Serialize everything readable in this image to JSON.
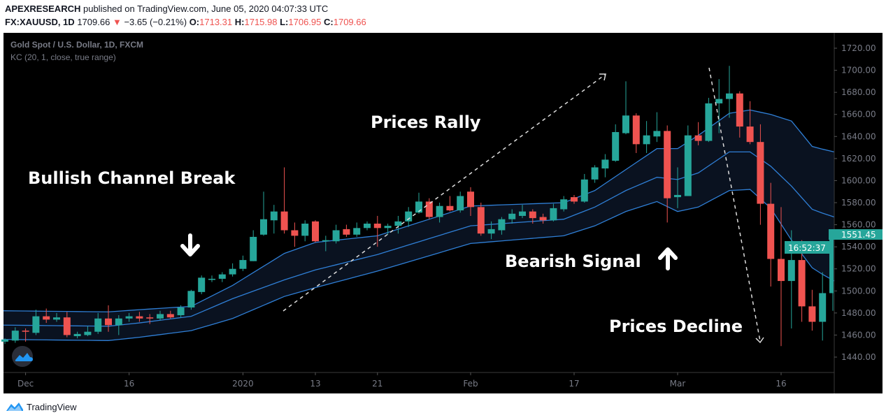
{
  "header": {
    "publisher": "APEXRESEARCH",
    "published_text": "published on TradingView.com, June 05, 2020 04:07:33 UTC",
    "symbol": "FX:XAUUSD, 1D",
    "last_price": "1709.66",
    "change": "−3.65 (−0.21%)",
    "open_label": "O:",
    "open": "1713.31",
    "high_label": "H:",
    "high": "1715.98",
    "low_label": "L:",
    "low": "1706.95",
    "close_label": "C:",
    "close": "1709.66",
    "change_direction_icon": "triangle-down-icon"
  },
  "legend": {
    "instrument": "Gold Spot / U.S. Dollar, 1D, FXCM",
    "indicator": "KC (20, 1, close, true range)"
  },
  "price_badge": {
    "price": "1551.45",
    "countdown": "16:52:37"
  },
  "footer": {
    "brand": "TradingView"
  },
  "colors": {
    "up": "#26a69a",
    "down": "#ef5350",
    "band": "#2f7fd6",
    "band_fill": "#0a1220",
    "background": "#000000"
  },
  "annotations": {
    "bullish_break": "Bullish Channel Break",
    "rally": "Prices Rally",
    "bearish": "Bearish Signal",
    "decline": "Prices Decline"
  },
  "chart_data": {
    "type": "candlestick",
    "ylim": [
      1430,
      1730
    ],
    "y_ticks": [
      "1720.00",
      "1700.00",
      "1680.00",
      "1660.00",
      "1640.00",
      "1620.00",
      "1600.00",
      "1580.00",
      "1560.00",
      "1540.00",
      "1520.00",
      "1500.00",
      "1480.00",
      "1460.00",
      "1440.00"
    ],
    "x_ticks": [
      {
        "label": "Dec",
        "bar": 2
      },
      {
        "label": "16",
        "bar": 12
      },
      {
        "label": "2020",
        "bar": 23
      },
      {
        "label": "13",
        "bar": 30
      },
      {
        "label": "21",
        "bar": 36
      },
      {
        "label": "Feb",
        "bar": 45
      },
      {
        "label": "17",
        "bar": 55
      },
      {
        "label": "Mar",
        "bar": 65
      },
      {
        "label": "16",
        "bar": 75
      }
    ],
    "ohlc_fields": [
      "open",
      "high",
      "low",
      "close"
    ],
    "ohlc": [
      [
        1454,
        1457,
        1452,
        1456
      ],
      [
        1455,
        1467,
        1453,
        1464
      ],
      [
        1464,
        1466,
        1454,
        1463
      ],
      [
        1462,
        1483,
        1460,
        1477
      ],
      [
        1477,
        1484,
        1471,
        1474
      ],
      [
        1474,
        1480,
        1472,
        1476
      ],
      [
        1476,
        1481,
        1458,
        1460
      ],
      [
        1459,
        1463,
        1457,
        1461
      ],
      [
        1460,
        1468,
        1459,
        1463
      ],
      [
        1463,
        1480,
        1461,
        1475
      ],
      [
        1475,
        1487,
        1463,
        1469
      ],
      [
        1469,
        1478,
        1460,
        1475
      ],
      [
        1475,
        1480,
        1472,
        1477
      ],
      [
        1477,
        1481,
        1472,
        1475
      ],
      [
        1476,
        1479,
        1470,
        1475
      ],
      [
        1475,
        1482,
        1473,
        1479
      ],
      [
        1479,
        1482,
        1475,
        1476
      ],
      [
        1478,
        1487,
        1476,
        1485
      ],
      [
        1485,
        1501,
        1483,
        1500
      ],
      [
        1499,
        1514,
        1497,
        1512
      ],
      [
        1510,
        1514,
        1508,
        1511
      ],
      [
        1511,
        1517,
        1508,
        1515
      ],
      [
        1515,
        1525,
        1513,
        1520
      ],
      [
        1520,
        1532,
        1518,
        1528
      ],
      [
        1527,
        1555,
        1527,
        1549
      ],
      [
        1551,
        1590,
        1550,
        1565
      ],
      [
        1564,
        1578,
        1552,
        1572
      ],
      [
        1572,
        1612,
        1552,
        1555
      ],
      [
        1555,
        1562,
        1540,
        1550
      ],
      [
        1550,
        1564,
        1545,
        1561
      ],
      [
        1563,
        1564,
        1544,
        1545
      ],
      [
        1545,
        1550,
        1536,
        1546
      ],
      [
        1545,
        1560,
        1543,
        1555
      ],
      [
        1556,
        1560,
        1549,
        1551
      ],
      [
        1551,
        1562,
        1549,
        1557
      ],
      [
        1557,
        1563,
        1555,
        1561
      ],
      [
        1561,
        1568,
        1540,
        1557
      ],
      [
        1557,
        1561,
        1551,
        1559
      ],
      [
        1559,
        1568,
        1552,
        1563
      ],
      [
        1563,
        1576,
        1558,
        1572
      ],
      [
        1571,
        1589,
        1570,
        1581
      ],
      [
        1581,
        1584,
        1565,
        1567
      ],
      [
        1567,
        1580,
        1562,
        1577
      ],
      [
        1577,
        1586,
        1572,
        1573
      ],
      [
        1573,
        1590,
        1571,
        1586
      ],
      [
        1590,
        1594,
        1568,
        1576
      ],
      [
        1576,
        1580,
        1550,
        1552
      ],
      [
        1552,
        1563,
        1547,
        1556
      ],
      [
        1555,
        1567,
        1551,
        1565
      ],
      [
        1565,
        1574,
        1561,
        1570
      ],
      [
        1568,
        1578,
        1566,
        1572
      ],
      [
        1572,
        1574,
        1561,
        1566
      ],
      [
        1567,
        1570,
        1561,
        1564
      ],
      [
        1564,
        1579,
        1563,
        1575
      ],
      [
        1574,
        1586,
        1572,
        1583
      ],
      [
        1585,
        1587,
        1579,
        1581
      ],
      [
        1581,
        1606,
        1580,
        1601
      ],
      [
        1601,
        1614,
        1598,
        1612
      ],
      [
        1611,
        1624,
        1603,
        1619
      ],
      [
        1618,
        1651,
        1617,
        1644
      ],
      [
        1643,
        1690,
        1642,
        1659
      ],
      [
        1659,
        1661,
        1625,
        1633
      ],
      [
        1633,
        1654,
        1625,
        1641
      ],
      [
        1640,
        1662,
        1635,
        1645
      ],
      [
        1645,
        1650,
        1562,
        1584
      ],
      [
        1585,
        1612,
        1575,
        1587
      ],
      [
        1586,
        1650,
        1586,
        1641
      ],
      [
        1641,
        1653,
        1632,
        1636
      ],
      [
        1636,
        1675,
        1635,
        1670
      ],
      [
        1670,
        1692,
        1643,
        1674
      ],
      [
        1674,
        1704,
        1657,
        1679
      ],
      [
        1679,
        1681,
        1639,
        1649
      ],
      [
        1649,
        1672,
        1633,
        1635
      ],
      [
        1635,
        1651,
        1560,
        1579
      ],
      [
        1579,
        1598,
        1504,
        1529
      ],
      [
        1529,
        1576,
        1450,
        1509
      ],
      [
        1509,
        1555,
        1466,
        1528
      ],
      [
        1528,
        1546,
        1472,
        1486
      ],
      [
        1486,
        1501,
        1464,
        1472
      ],
      [
        1472,
        1517,
        1455,
        1498
      ],
      [
        1498,
        1553,
        1482,
        1551.45
      ]
    ],
    "keltner_channel": {
      "bars": [
        0,
        10,
        13,
        18,
        22,
        27,
        30,
        36,
        45,
        54,
        57,
        60,
        63,
        65,
        67,
        70,
        72,
        74,
        76,
        78,
        80
      ],
      "upper": [
        1482,
        1481,
        1483,
        1486,
        1505,
        1534,
        1544,
        1550,
        1577,
        1580,
        1591,
        1610,
        1629,
        1629,
        1641,
        1661,
        1664,
        1660,
        1654,
        1631,
        1626
      ],
      "middle": [
        1469,
        1468,
        1471,
        1477,
        1493,
        1510,
        1519,
        1533,
        1559,
        1565,
        1576,
        1591,
        1603,
        1601,
        1607,
        1626,
        1626,
        1613,
        1595,
        1574,
        1567
      ],
      "lower": [
        1456,
        1455,
        1458,
        1464,
        1475,
        1495,
        1503,
        1518,
        1543,
        1550,
        1559,
        1572,
        1581,
        1572,
        1576,
        1591,
        1592,
        1575,
        1546,
        1521,
        1509
      ]
    }
  }
}
